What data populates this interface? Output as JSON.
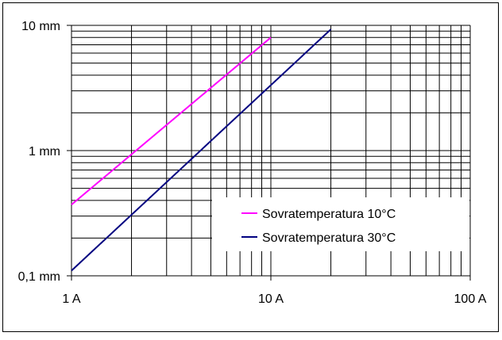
{
  "chart_data": {
    "type": "line",
    "x_scale": "log",
    "y_scale": "log",
    "xlim": [
      1,
      100
    ],
    "ylim": [
      0.1,
      10
    ],
    "x_ticks": [
      {
        "value": 1,
        "label": "1 A"
      },
      {
        "value": 10,
        "label": "10 A"
      },
      {
        "value": 100,
        "label": "100 A"
      }
    ],
    "y_ticks": [
      {
        "value": 10,
        "label": "10 mm"
      },
      {
        "value": 1,
        "label": "1 mm"
      },
      {
        "value": 0.1,
        "label": "0,1 mm"
      }
    ],
    "grid": true,
    "legend_position": "bottom-right",
    "series": [
      {
        "name": "Sovratemperatura 10°C",
        "color": "#ff00ff",
        "points": [
          [
            1,
            0.37
          ],
          [
            10,
            8.0
          ]
        ]
      },
      {
        "name": "Sovratemperatura 30°C",
        "color": "#000080",
        "points": [
          [
            1,
            0.11
          ],
          [
            20,
            9.3
          ]
        ]
      }
    ]
  }
}
